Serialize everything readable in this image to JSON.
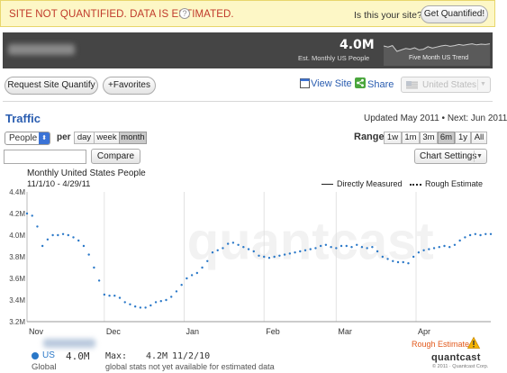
{
  "banner": {
    "message": "SITE NOT QUANTIFIED. DATA IS ESTIMATED.",
    "help_icon": "?",
    "question": "Is this your site?",
    "get_quantified_label": "Get Quantified!"
  },
  "header": {
    "monthly_people_value": "4.0M",
    "monthly_people_label": "Est. Monthly US People",
    "trend_label": "Five Month US Trend",
    "trend_values": [
      3.95,
      3.92,
      3.96,
      3.8,
      3.84,
      3.88,
      3.86,
      3.9,
      3.84,
      3.86,
      3.93,
      3.89,
      3.92,
      3.95,
      3.97,
      3.94,
      3.96,
      3.99,
      3.97,
      3.99,
      4.01,
      3.98,
      4.0,
      3.99,
      4.01
    ]
  },
  "actions": {
    "request_label": "Request Site Quantify",
    "favorites_label": "+Favorites",
    "view_site_label": "View Site",
    "share_label": "Share",
    "country_select_value": "United States",
    "flag_icon": "us-flag-icon"
  },
  "traffic": {
    "title": "Traffic",
    "updated": "Updated May 2011 • Next: Jun 2011",
    "metric_select": "People",
    "per_label": "per",
    "periods": [
      "day",
      "week",
      "month"
    ],
    "active_period": "month",
    "range_label": "Range",
    "ranges": [
      "1w",
      "1m",
      "3m",
      "6m",
      "1y",
      "All"
    ],
    "active_range": "6m",
    "compare_label": "Compare",
    "compare_input_value": "",
    "chart_settings_label": "Chart Settings"
  },
  "chart_data": {
    "type": "line",
    "title": "Monthly United States People",
    "date_range": "11/1/10 - 4/29/11",
    "ylim": [
      3.2,
      4.4
    ],
    "y_ticks": [
      "3.2M",
      "3.4M",
      "3.6M",
      "3.8M",
      "4.0M",
      "4.2M",
      "4.4M"
    ],
    "y_tick_values": [
      3.2,
      3.4,
      3.6,
      3.8,
      4.0,
      4.2,
      4.4
    ],
    "x_ticks": [
      "Nov",
      "Dec",
      "Jan",
      "Feb",
      "Mar",
      "Apr"
    ],
    "x_tick_days": [
      0,
      30,
      61,
      92,
      120,
      151
    ],
    "x_range_days": [
      0,
      180
    ],
    "grid": "vertical",
    "legend_position": "top-right",
    "legend": [
      {
        "name": "Directly Measured",
        "style": "solid"
      },
      {
        "name": "Rough Estimate",
        "style": "dotted"
      }
    ],
    "series": [
      {
        "name": "Rough Estimate",
        "style": "dotted",
        "color": "#2a78c8",
        "x": [
          0,
          2,
          4,
          6,
          8,
          10,
          12,
          14,
          16,
          18,
          20,
          22,
          24,
          26,
          28,
          30,
          32,
          34,
          36,
          38,
          40,
          42,
          44,
          46,
          48,
          50,
          52,
          54,
          56,
          58,
          60,
          62,
          64,
          66,
          68,
          70,
          72,
          74,
          76,
          78,
          80,
          82,
          84,
          86,
          88,
          90,
          92,
          94,
          96,
          98,
          100,
          102,
          104,
          106,
          108,
          110,
          112,
          114,
          116,
          118,
          120,
          122,
          124,
          126,
          128,
          130,
          132,
          134,
          136,
          138,
          140,
          142,
          144,
          146,
          148,
          150,
          152,
          154,
          156,
          158,
          160,
          162,
          164,
          166,
          168,
          170,
          172,
          174,
          176,
          178,
          180
        ],
        "y": [
          4.2,
          4.18,
          4.08,
          3.9,
          3.96,
          4.0,
          4.0,
          4.01,
          4.0,
          3.98,
          3.95,
          3.9,
          3.82,
          3.7,
          3.58,
          3.45,
          3.44,
          3.44,
          3.42,
          3.38,
          3.36,
          3.34,
          3.33,
          3.33,
          3.35,
          3.38,
          3.39,
          3.4,
          3.43,
          3.48,
          3.54,
          3.6,
          3.63,
          3.65,
          3.7,
          3.76,
          3.84,
          3.86,
          3.88,
          3.92,
          3.93,
          3.91,
          3.89,
          3.87,
          3.85,
          3.81,
          3.8,
          3.79,
          3.8,
          3.81,
          3.82,
          3.83,
          3.84,
          3.85,
          3.86,
          3.87,
          3.88,
          3.9,
          3.91,
          3.89,
          3.88,
          3.9,
          3.9,
          3.89,
          3.91,
          3.89,
          3.88,
          3.89,
          3.85,
          3.8,
          3.78,
          3.76,
          3.75,
          3.75,
          3.74,
          3.8,
          3.84,
          3.86,
          3.87,
          3.88,
          3.89,
          3.9,
          3.89,
          3.91,
          3.95,
          3.98,
          4.0,
          4.01,
          4.0,
          4.01,
          4.01
        ]
      }
    ],
    "watermark": "quantcast"
  },
  "footer": {
    "series_name": "US",
    "series_sub": "Global",
    "value": "4.0M",
    "max_label": "Max:",
    "max_value": "4.2M",
    "max_date": "11/2/10",
    "note": "global stats not yet available for estimated data",
    "rough_estimate_label": "Rough Estimate",
    "logo": "quantcast",
    "copyright": "© 2011 · Quantcast Corp."
  },
  "colors": {
    "banner_bg": "#fdf7c6",
    "warning_text": "#c0392b",
    "dark_header": "#454545",
    "link_blue": "#2a5db0",
    "series_blue": "#2a78c8",
    "rough_estimate": "#e2591c"
  }
}
